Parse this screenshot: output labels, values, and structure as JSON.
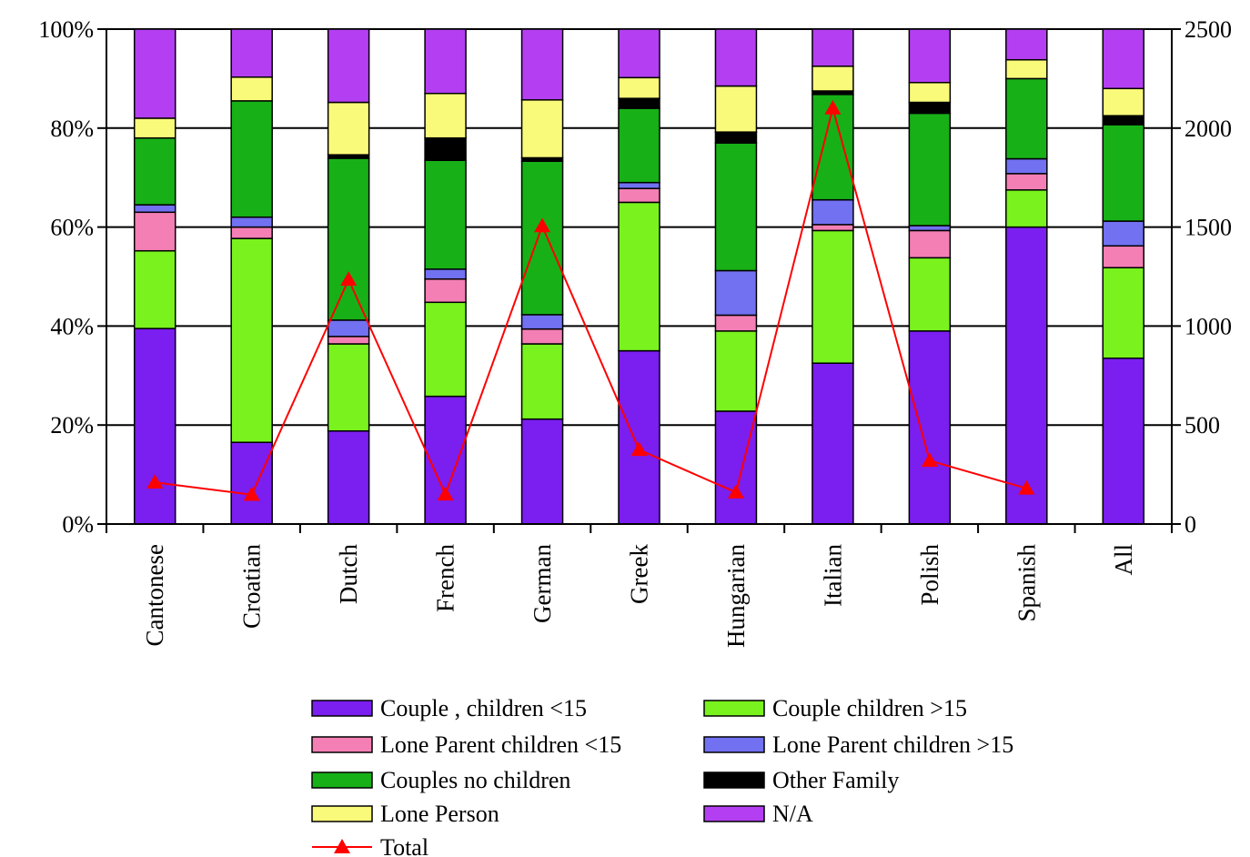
{
  "chart_data": {
    "type": "bar",
    "stacked": true,
    "categories": [
      "Cantonese",
      "Croatian",
      "Dutch",
      "French",
      "German",
      "Greek",
      "Hungarian",
      "Italian",
      "Polish",
      "Spanish",
      "All"
    ],
    "y_axis": {
      "ylim": [
        0,
        100
      ],
      "ticks": [
        0,
        20,
        40,
        60,
        80,
        100
      ],
      "tick_labels": [
        "0%",
        "20%",
        "40%",
        "60%",
        "80%",
        "100%"
      ]
    },
    "y2_axis": {
      "ylim": [
        0,
        2500
      ],
      "ticks": [
        0,
        500,
        1000,
        1500,
        2000,
        2500
      ],
      "tick_labels": [
        "0",
        "500",
        "1000",
        "1500",
        "2000",
        "2500"
      ]
    },
    "grid": "horizontal",
    "legend_position": "bottom",
    "series": [
      {
        "name": "Couple , children <15",
        "color": "#7B1EF0",
        "values": [
          39.5,
          16.5,
          18.8,
          25.8,
          21.2,
          35.0,
          22.8,
          32.5,
          39.0,
          60.0,
          33.5
        ]
      },
      {
        "name": "Couple children >15",
        "color": "#79F21E",
        "values": [
          15.7,
          41.2,
          17.6,
          19.0,
          15.2,
          30.0,
          16.2,
          26.8,
          14.8,
          7.5,
          18.3
        ]
      },
      {
        "name": "Lone Parent children <15",
        "color": "#F47FB4",
        "values": [
          7.8,
          2.3,
          1.5,
          4.7,
          3.0,
          2.8,
          3.2,
          1.2,
          5.5,
          3.3,
          4.4
        ]
      },
      {
        "name": "Lone Parent children >15",
        "color": "#7171F2",
        "values": [
          1.5,
          2.0,
          3.3,
          2.0,
          2.9,
          1.2,
          9.0,
          5.0,
          1.0,
          3.0,
          5.0
        ]
      },
      {
        "name": "Couples no children",
        "color": "#17B017",
        "values": [
          13.5,
          23.5,
          32.7,
          22.0,
          31.0,
          15.0,
          25.8,
          21.3,
          22.7,
          16.2,
          19.5
        ]
      },
      {
        "name": "Other Family",
        "color": "#000000",
        "values": [
          0,
          0,
          0.7,
          4.5,
          0.7,
          2.0,
          2.2,
          0.7,
          2.2,
          0,
          1.8
        ]
      },
      {
        "name": "Lone Person",
        "color": "#FAFA7A",
        "values": [
          4.0,
          4.8,
          10.6,
          9.0,
          11.7,
          4.2,
          9.3,
          5.0,
          4.0,
          3.8,
          5.5
        ]
      },
      {
        "name": "N/A",
        "color": "#B43FF2",
        "values": [
          18.0,
          9.7,
          14.8,
          13.0,
          14.3,
          9.8,
          11.5,
          7.5,
          10.8,
          6.2,
          12.0
        ]
      }
    ],
    "line_series": {
      "name": "Total",
      "color": "#FF0000",
      "axis": "y2",
      "marker": "triangle",
      "categories": [
        "Cantonese",
        "Croatian",
        "Dutch",
        "French",
        "German",
        "Greek",
        "Hungarian",
        "Italian",
        "Polish",
        "Spanish"
      ],
      "values": [
        210,
        148,
        1235,
        150,
        1505,
        375,
        160,
        2100,
        320,
        180
      ]
    }
  }
}
